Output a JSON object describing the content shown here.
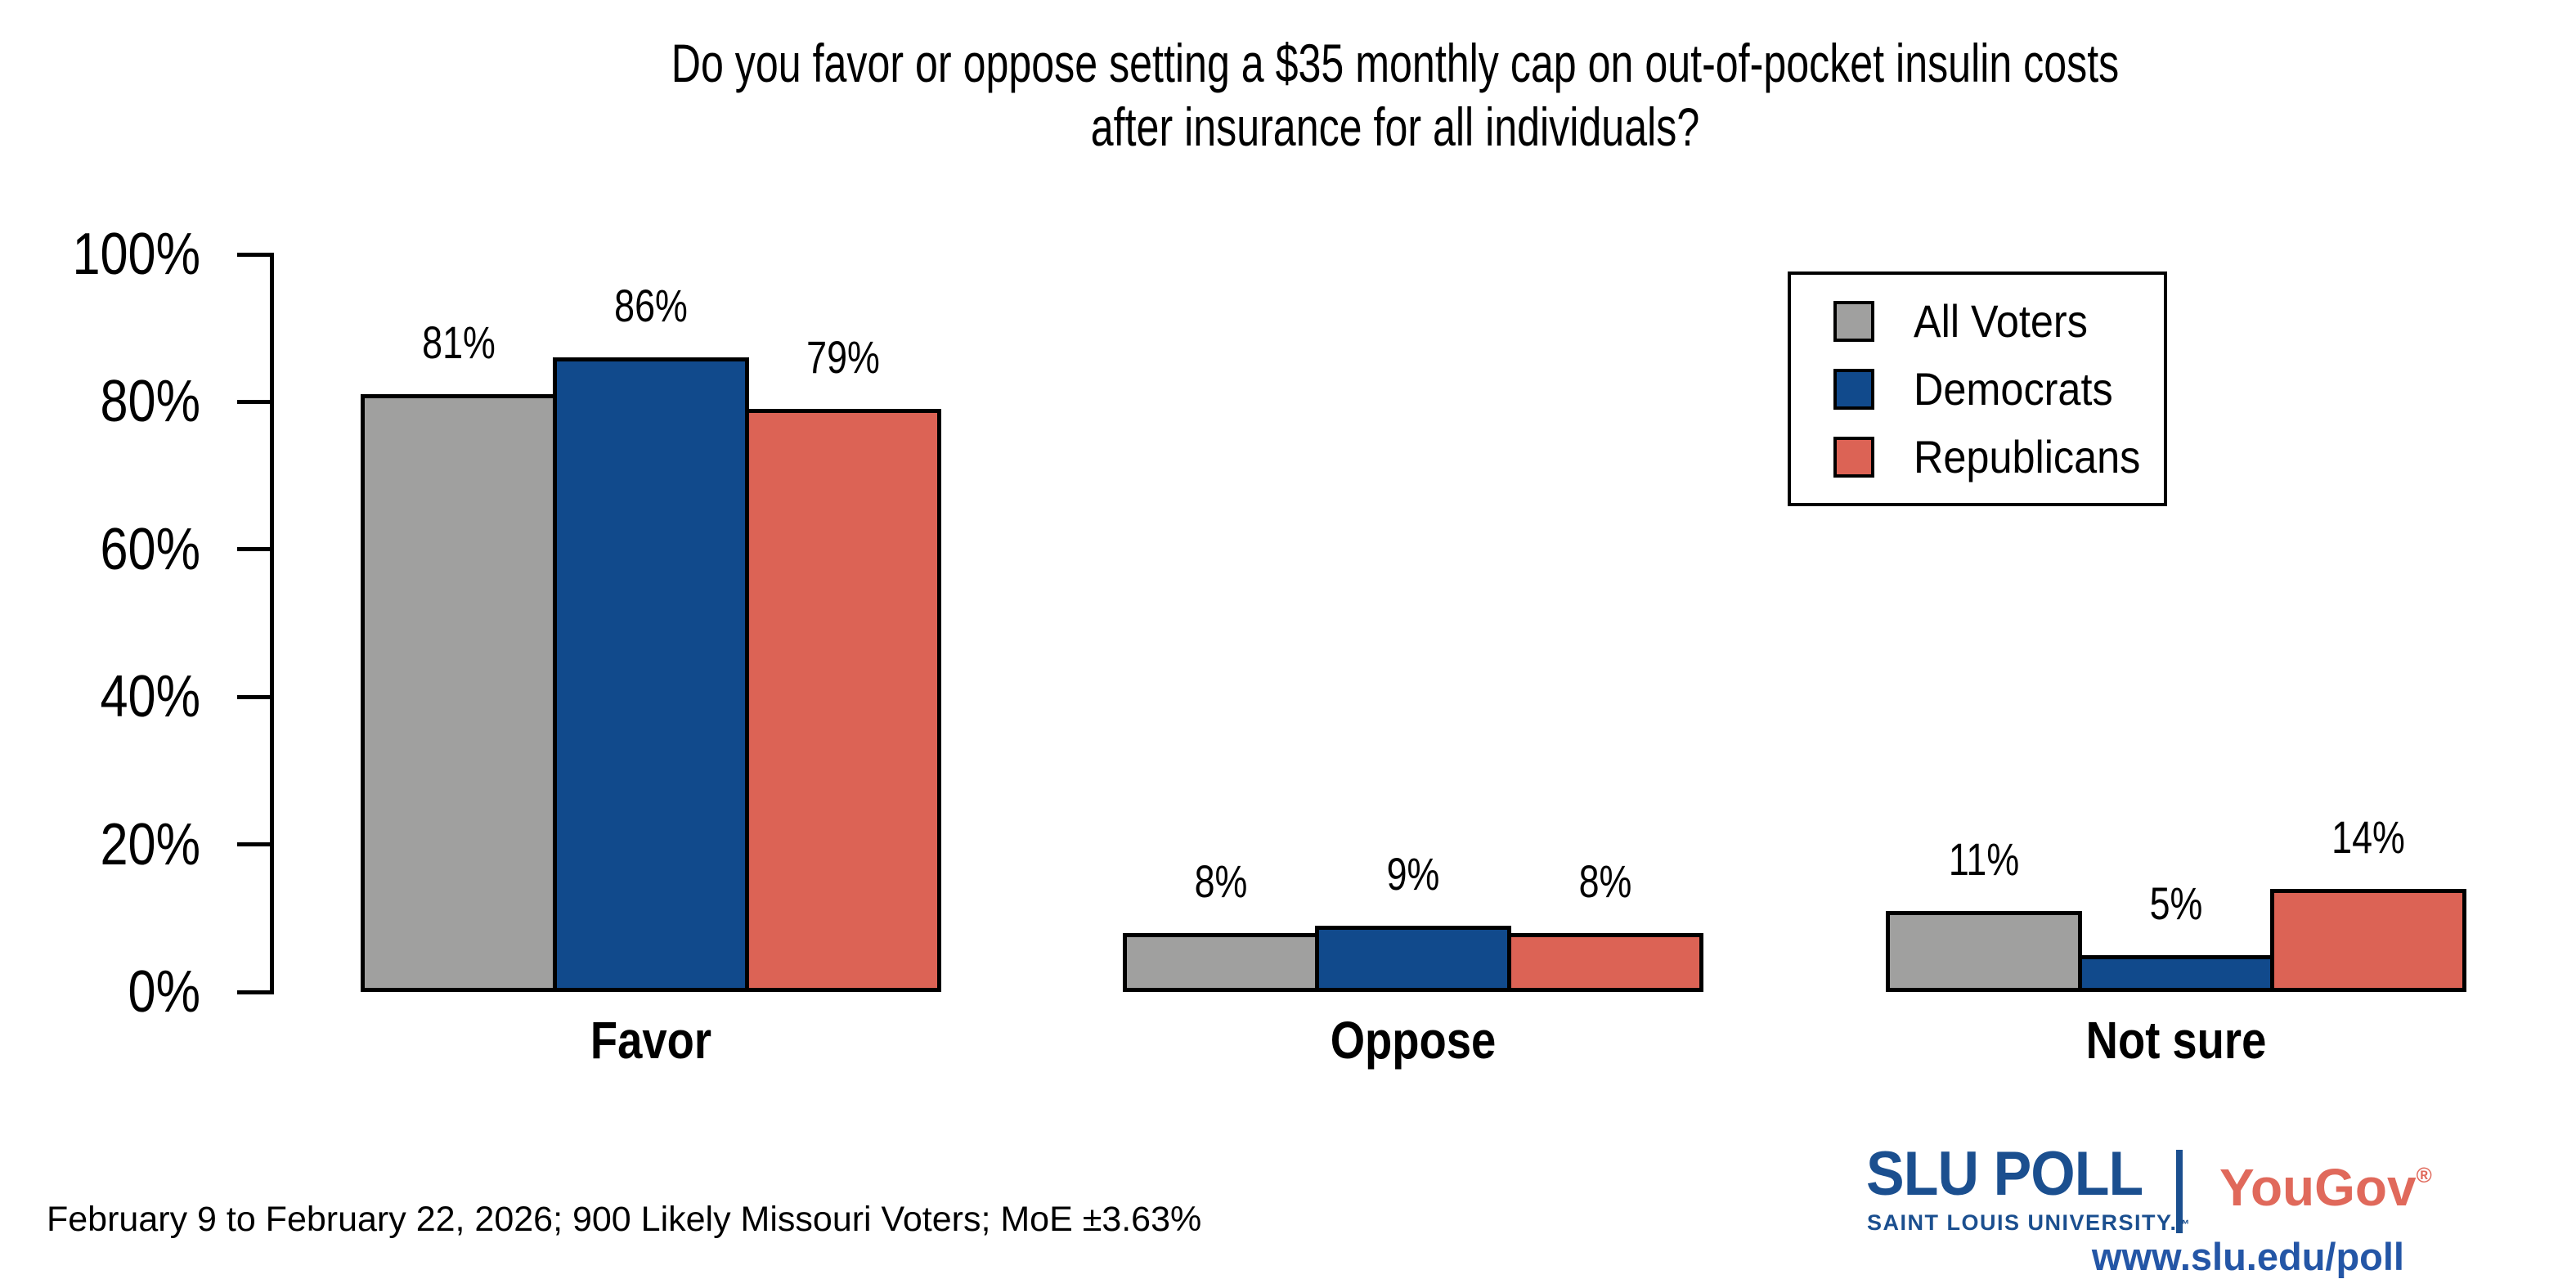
{
  "header": {
    "title_lines": [
      "Do you favor or oppose setting a $35 monthly cap on out-of-pocket insulin costs",
      "after insurance for all individuals?"
    ]
  },
  "chart_data": {
    "type": "bar",
    "title": "Do you favor or oppose setting a $35 monthly cap on out-of-pocket insulin costs after insurance for all individuals?",
    "categories": [
      "Favor",
      "Oppose",
      "Not sure"
    ],
    "series": [
      {
        "name": "All Voters",
        "color": "#A0A09F",
        "values": [
          81,
          8,
          11
        ]
      },
      {
        "name": "Democrats",
        "color": "#114A8C",
        "values": [
          86,
          9,
          5
        ]
      },
      {
        "name": "Republicans",
        "color": "#DC6355",
        "values": [
          79,
          8,
          14
        ]
      }
    ],
    "value_suffix": "%",
    "xlabel": "",
    "ylabel": "",
    "ylim": [
      0,
      100
    ],
    "yticks": [
      "0%",
      "20%",
      "40%",
      "60%",
      "80%",
      "100%"
    ],
    "grid": false,
    "legend_position": "top-right",
    "bar_border_color": "#000000",
    "axis_color": "#000000"
  },
  "footer": {
    "note": "February 9 to February 22, 2026; 900 Likely Missouri Voters; MoE ±3.63%"
  },
  "branding": {
    "slu_poll": "SLU POLL",
    "slu_subtitle": "SAINT LOUIS UNIVERSITY.",
    "slu_trademark": "™",
    "partner": "YouGov",
    "partner_mark": "®",
    "url": "www.slu.edu/poll",
    "colors": {
      "slu_blue": "#1B4F8F",
      "url_blue": "#2456A6",
      "yougov_red": "#E0695B"
    }
  }
}
